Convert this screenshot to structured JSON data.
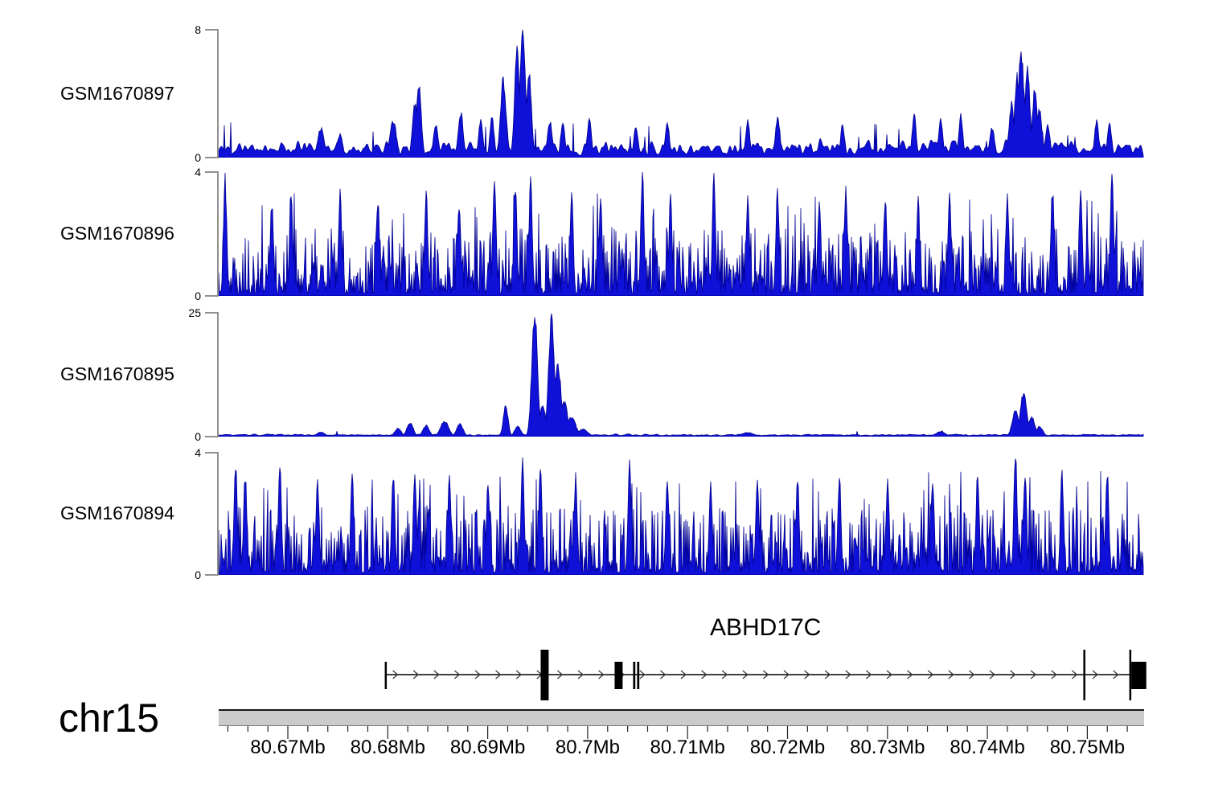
{
  "colors": {
    "signal_fill": "#0f10d8",
    "signal_stroke": "#000090",
    "ideogram_fill": "#cbcbcb",
    "gene_black": "#000000",
    "axis_bracket_gray": "#909090",
    "tick_color": "#222222",
    "text_color": "#000000"
  },
  "chart_data": {
    "type": "area",
    "x_unit": "Mb",
    "region": {
      "chromosome": "chr15",
      "start_mb": 80.663,
      "end_mb": 80.756
    },
    "tracks": [
      {
        "label": "GSM1670897",
        "ymax": 8,
        "ylim": [
          0,
          8
        ],
        "ymax_label": "8",
        "ymin_label": "0",
        "seed": 11,
        "noise": {
          "b0": 0.1,
          "b1": 1.6,
          "pw": 2.2,
          "smooth": 3,
          "sp": 0.03,
          "smax": 2.2
        },
        "peaks": [
          [
            80.6733,
            1.8,
            4
          ],
          [
            80.6752,
            1.5,
            3
          ],
          [
            80.6805,
            2.3,
            4
          ],
          [
            80.6827,
            3.4,
            3
          ],
          [
            80.6831,
            4.35,
            3
          ],
          [
            80.6848,
            2.0,
            3
          ],
          [
            80.6873,
            2.8,
            3
          ],
          [
            80.6893,
            2.4,
            2.5
          ],
          [
            80.6904,
            2.5,
            2.5
          ],
          [
            80.6916,
            4.8,
            3.5
          ],
          [
            80.6929,
            6.5,
            3
          ],
          [
            80.6935,
            8.0,
            3.5
          ],
          [
            80.6941,
            5.2,
            3
          ],
          [
            80.6962,
            2.2,
            3
          ],
          [
            80.6975,
            2.3,
            2.5
          ],
          [
            80.7002,
            2.4,
            2.5
          ],
          [
            80.7048,
            2.0,
            2.5
          ],
          [
            80.708,
            2.2,
            2.5
          ],
          [
            80.716,
            2.3,
            2.5
          ],
          [
            80.719,
            2.5,
            2.5
          ],
          [
            80.7255,
            2.0,
            2.5
          ],
          [
            80.7327,
            2.6,
            2.5
          ],
          [
            80.7353,
            2.4,
            2.5
          ],
          [
            80.7373,
            2.6,
            2.5
          ],
          [
            80.7405,
            1.8,
            3
          ],
          [
            80.7424,
            3.3,
            3
          ],
          [
            80.743,
            5.0,
            3
          ],
          [
            80.7434,
            6.2,
            4
          ],
          [
            80.744,
            5.6,
            3
          ],
          [
            80.7447,
            4.2,
            3
          ],
          [
            80.7452,
            3.0,
            3
          ],
          [
            80.746,
            2.0,
            3
          ],
          [
            80.7509,
            2.3,
            2.5
          ],
          [
            80.7522,
            2.2,
            2.5
          ]
        ]
      },
      {
        "label": "GSM1670896",
        "ymax": 4,
        "ylim": [
          0,
          4
        ],
        "ymax_label": "4",
        "ymin_label": "0",
        "seed": 22,
        "noise": {
          "b0": 0.08,
          "b1": 2.1,
          "pw": 2.4,
          "smooth": 0,
          "sp": 0.05,
          "smax": 3.4
        },
        "peaks": [
          [
            80.6637,
            3.7,
            2
          ],
          [
            80.6684,
            3.0,
            2
          ],
          [
            80.6703,
            3.3,
            2
          ],
          [
            80.6752,
            3.4,
            2
          ],
          [
            80.679,
            3.1,
            2
          ],
          [
            80.6838,
            3.3,
            2
          ],
          [
            80.6871,
            3.0,
            2
          ],
          [
            80.6907,
            3.9,
            2
          ],
          [
            80.6928,
            3.4,
            2
          ],
          [
            80.6943,
            3.6,
            2
          ],
          [
            80.6984,
            3.2,
            2
          ],
          [
            80.7013,
            3.0,
            2
          ],
          [
            80.7055,
            3.9,
            2
          ],
          [
            80.7083,
            3.1,
            2
          ],
          [
            80.7126,
            3.9,
            2
          ],
          [
            80.716,
            3.2,
            2
          ],
          [
            80.719,
            3.4,
            2
          ],
          [
            80.7232,
            3.1,
            2
          ],
          [
            80.7258,
            3.3,
            2
          ],
          [
            80.7298,
            3.2,
            2
          ],
          [
            80.7331,
            3.0,
            2
          ],
          [
            80.7362,
            3.1,
            2
          ],
          [
            80.742,
            3.2,
            2
          ],
          [
            80.7465,
            3.4,
            2
          ],
          [
            80.7493,
            3.5,
            2
          ],
          [
            80.7525,
            4.0,
            2
          ]
        ]
      },
      {
        "label": "GSM1670895",
        "ymax": 25,
        "ylim": [
          0,
          25
        ],
        "ymax_label": "25",
        "ymin_label": "0",
        "seed": 33,
        "noise": {
          "b0": 0.15,
          "b1": 0.55,
          "pw": 2.0,
          "smooth": 4,
          "sp": 0.008,
          "smax": 1.5
        },
        "peaks": [
          [
            80.6733,
            0.9,
            5
          ],
          [
            80.681,
            1.7,
            4
          ],
          [
            80.6822,
            2.7,
            4
          ],
          [
            80.6838,
            2.2,
            4
          ],
          [
            80.6857,
            3.0,
            5
          ],
          [
            80.6872,
            2.5,
            4
          ],
          [
            80.6918,
            6.0,
            3
          ],
          [
            80.693,
            2.0,
            4
          ],
          [
            80.6947,
            25,
            3.5
          ],
          [
            80.6955,
            6,
            4
          ],
          [
            80.6964,
            24,
            3.5
          ],
          [
            80.697,
            14,
            4
          ],
          [
            80.6977,
            7,
            4
          ],
          [
            80.6984,
            4,
            5
          ],
          [
            80.6995,
            1.5,
            6
          ],
          [
            80.716,
            0.8,
            8
          ],
          [
            80.7353,
            1.0,
            6
          ],
          [
            80.7428,
            5.0,
            4
          ],
          [
            80.7436,
            8.5,
            4
          ],
          [
            80.7444,
            4.0,
            4
          ],
          [
            80.7452,
            2.0,
            4
          ]
        ]
      },
      {
        "label": "GSM1670894",
        "ymax": 4,
        "ylim": [
          0,
          4
        ],
        "ymax_label": "4",
        "ymin_label": "0",
        "seed": 44,
        "noise": {
          "b0": 0.08,
          "b1": 2.15,
          "pw": 2.4,
          "smooth": 0,
          "sp": 0.05,
          "smax": 3.4
        },
        "peaks": [
          [
            80.6648,
            3.6,
            2
          ],
          [
            80.6657,
            3.3,
            2
          ],
          [
            80.6692,
            3.5,
            2
          ],
          [
            80.673,
            3.1,
            2
          ],
          [
            80.6764,
            3.2,
            2
          ],
          [
            80.6805,
            3.3,
            2
          ],
          [
            80.6827,
            3.4,
            2
          ],
          [
            80.6862,
            3.2,
            2
          ],
          [
            80.69,
            3.1,
            2
          ],
          [
            80.6935,
            3.7,
            2
          ],
          [
            80.6953,
            3.5,
            2
          ],
          [
            80.6988,
            3.2,
            2
          ],
          [
            80.7042,
            3.5,
            2
          ],
          [
            80.708,
            3.1,
            2
          ],
          [
            80.7123,
            3.0,
            2
          ],
          [
            80.717,
            3.2,
            2
          ],
          [
            80.721,
            3.1,
            2
          ],
          [
            80.7252,
            3.2,
            2
          ],
          [
            80.73,
            3.1,
            2
          ],
          [
            80.7345,
            3.2,
            2
          ],
          [
            80.739,
            3.3,
            2
          ],
          [
            80.7428,
            4.0,
            2
          ],
          [
            80.7438,
            3.4,
            2
          ],
          [
            80.7475,
            3.3,
            2
          ],
          [
            80.752,
            3.4,
            2
          ]
        ]
      }
    ],
    "gene_track": {
      "name": "ABHD17C",
      "strand": "+",
      "arrow_direction": "right",
      "line": {
        "start_mb": 80.6797,
        "end_mb": 80.7559
      },
      "exons": [
        {
          "start_mb": 80.6797,
          "end_mb": 80.6799,
          "kind": "half"
        },
        {
          "start_mb": 80.6953,
          "end_mb": 80.6961,
          "kind": "tall"
        },
        {
          "start_mb": 80.7027,
          "end_mb": 80.7035,
          "kind": "half"
        },
        {
          "start_mb": 80.70455,
          "end_mb": 80.70477,
          "kind": "half"
        },
        {
          "start_mb": 80.70495,
          "end_mb": 80.70517,
          "kind": "half"
        },
        {
          "start_mb": 80.7496,
          "end_mb": 80.7498,
          "kind": "tall"
        },
        {
          "start_mb": 80.7542,
          "end_mb": 80.7544,
          "kind": "tall"
        },
        {
          "start_mb": 80.7544,
          "end_mb": 80.7559,
          "kind": "half"
        }
      ]
    },
    "genome_axis": {
      "chromosome": "chr15",
      "minor_tick_step_mb": 0.002,
      "minor_tick_start_mb": 80.664,
      "minor_tick_end_mb": 80.754,
      "major_ticks": [
        {
          "mb": 80.67,
          "label": "80.67Mb"
        },
        {
          "mb": 80.68,
          "label": "80.68Mb"
        },
        {
          "mb": 80.69,
          "label": "80.69Mb"
        },
        {
          "mb": 80.7,
          "label": "80.7Mb"
        },
        {
          "mb": 80.71,
          "label": "80.71Mb"
        },
        {
          "mb": 80.72,
          "label": "80.72Mb"
        },
        {
          "mb": 80.73,
          "label": "80.73Mb"
        },
        {
          "mb": 80.74,
          "label": "80.74Mb"
        },
        {
          "mb": 80.75,
          "label": "80.75Mb"
        }
      ]
    }
  }
}
